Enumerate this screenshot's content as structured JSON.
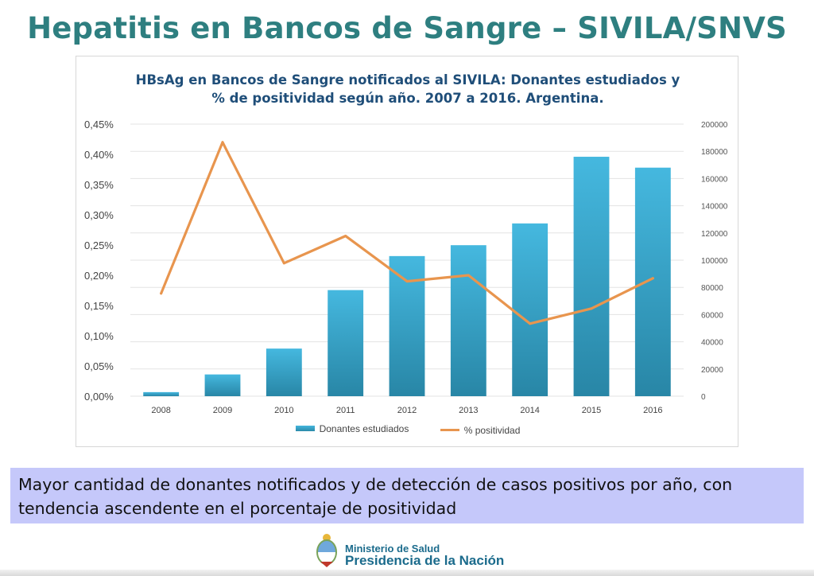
{
  "slide": {
    "title": "Hepatitis en Bancos de Sangre – SIVILA/SNVS"
  },
  "chart_data": {
    "type": "bar",
    "title_line1": "HBsAg en Bancos de Sangre notificados al SIVILA: Donantes estudiados y",
    "title_line2": "% de positividad según año. 2007 a 2016. Argentina.",
    "categories": [
      "2008",
      "2009",
      "2010",
      "2011",
      "2012",
      "2013",
      "2014",
      "2015",
      "2016"
    ],
    "series": [
      {
        "name": "Donantes estudiados",
        "type": "bar",
        "axis": "right",
        "color": "#35a9cf",
        "values": [
          3000,
          16000,
          35000,
          78000,
          103000,
          111000,
          127000,
          176000,
          168000
        ]
      },
      {
        "name": "% positividad",
        "type": "line",
        "axis": "left",
        "color": "#e8954e",
        "values": [
          0.17,
          0.42,
          0.22,
          0.265,
          0.19,
          0.2,
          0.12,
          0.145,
          0.195
        ]
      }
    ],
    "y_left": {
      "ylim": [
        0,
        0.45
      ],
      "ticks": [
        "0,00%",
        "0,05%",
        "0,10%",
        "0,15%",
        "0,20%",
        "0,25%",
        "0,30%",
        "0,35%",
        "0,40%",
        "0,45%"
      ]
    },
    "y_right": {
      "ylim": [
        0,
        200000
      ],
      "ticks": [
        "0",
        "20000",
        "40000",
        "60000",
        "80000",
        "100000",
        "120000",
        "140000",
        "160000",
        "180000",
        "200000"
      ]
    },
    "grid": true,
    "legend_position": "bottom"
  },
  "callout": {
    "text": "Mayor cantidad de donantes notificados y de detección de casos positivos por año, con tendencia ascendente en el porcentaje de positividad"
  },
  "footer": {
    "ministry": "Ministerio de Salud",
    "presidency": "Presidencia de la Nación",
    "logo_icon": "national-coat-of-arms-icon"
  }
}
